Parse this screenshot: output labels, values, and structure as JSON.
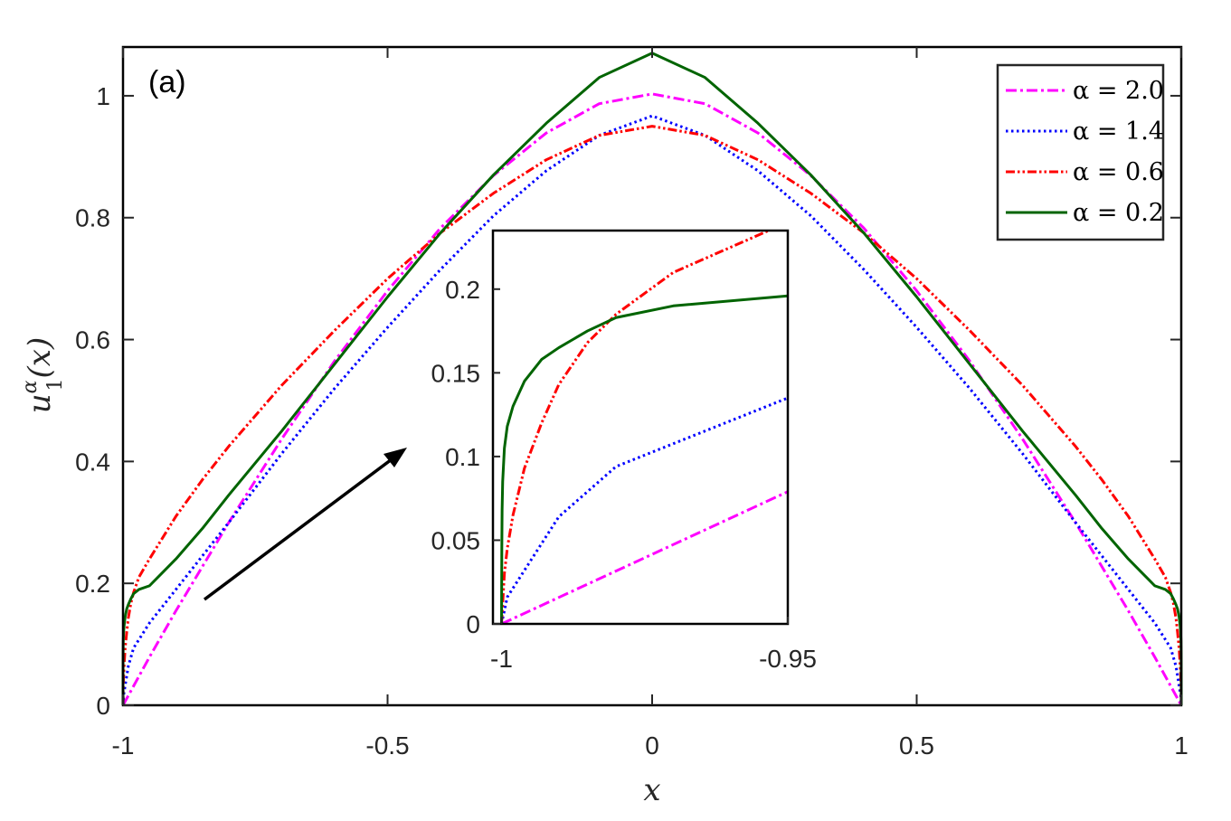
{
  "chart_data": {
    "type": "line",
    "panel_label": "(a)",
    "xlabel": "x",
    "ylabel": {
      "base": "u",
      "superscript": "α",
      "subscript": "1",
      "arg": "(x)"
    },
    "xlim": [
      -1,
      1
    ],
    "ylim": [
      0,
      1.08
    ],
    "xticks": [
      -1,
      -0.5,
      0,
      0.5,
      1
    ],
    "xtick_labels": [
      "-1",
      "-0.5",
      "0",
      "0.5",
      "1"
    ],
    "yticks": [
      0,
      0.2,
      0.4,
      0.6,
      0.8,
      1
    ],
    "ytick_labels": [
      "0",
      "0.2",
      "0.4",
      "0.6",
      "0.8",
      "1"
    ],
    "legend_position": "top-right",
    "series": [
      {
        "name": "α = 2.0",
        "legend_label": "α = 2.0",
        "alpha": 2.0,
        "color": "#ff00ff",
        "dash": "dash-dot",
        "x": [
          -1,
          -0.95,
          -0.9,
          -0.8,
          -0.7,
          -0.6,
          -0.5,
          -0.4,
          -0.3,
          -0.2,
          -0.1,
          0
        ],
        "y": [
          0,
          0.079,
          0.155,
          0.3,
          0.437,
          0.565,
          0.68,
          0.783,
          0.869,
          0.939,
          0.987,
          1.003
        ]
      },
      {
        "name": "α = 1.4",
        "legend_label": "α = 1.4",
        "alpha": 1.4,
        "color": "#0000ff",
        "dash": "dotted",
        "x": [
          -1,
          -0.999,
          -0.99,
          -0.98,
          -0.95,
          -0.9,
          -0.8,
          -0.7,
          -0.6,
          -0.5,
          -0.4,
          -0.3,
          -0.2,
          -0.1,
          0
        ],
        "y": [
          0,
          0.016,
          0.064,
          0.094,
          0.135,
          0.19,
          0.3,
          0.413,
          0.52,
          0.62,
          0.715,
          0.803,
          0.877,
          0.935,
          0.967
        ]
      },
      {
        "name": "α = 0.6",
        "legend_label": "α = 0.6",
        "alpha": 0.6,
        "color": "#ff0000",
        "dash": "dash-dot-dot",
        "x": [
          -1,
          -0.9995,
          -0.999,
          -0.998,
          -0.996,
          -0.993,
          -0.99,
          -0.985,
          -0.98,
          -0.97,
          -0.95,
          -0.9,
          -0.85,
          -0.8,
          -0.7,
          -0.6,
          -0.5,
          -0.4,
          -0.3,
          -0.2,
          -0.1,
          0
        ],
        "y": [
          0,
          0.03,
          0.045,
          0.065,
          0.093,
          0.12,
          0.143,
          0.168,
          0.185,
          0.21,
          0.24,
          0.31,
          0.37,
          0.425,
          0.525,
          0.615,
          0.7,
          0.775,
          0.84,
          0.895,
          0.935,
          0.95
        ]
      },
      {
        "name": "α = 0.2",
        "legend_label": "α = 0.2",
        "alpha": 0.2,
        "color": "#006400",
        "dash": "solid",
        "x": [
          -1,
          -0.99995,
          -0.9999,
          -0.9998,
          -0.9995,
          -0.999,
          -0.998,
          -0.996,
          -0.993,
          -0.99,
          -0.985,
          -0.98,
          -0.97,
          -0.95,
          -0.9,
          -0.85,
          -0.8,
          -0.7,
          -0.6,
          -0.5,
          -0.4,
          -0.3,
          -0.2,
          -0.1,
          0
        ],
        "y": [
          0,
          0.045,
          0.068,
          0.085,
          0.105,
          0.118,
          0.13,
          0.145,
          0.158,
          0.165,
          0.175,
          0.183,
          0.19,
          0.196,
          0.24,
          0.29,
          0.345,
          0.45,
          0.56,
          0.67,
          0.775,
          0.87,
          0.955,
          1.03,
          1.07
        ]
      }
    ],
    "inset": {
      "xlim": [
        -1.0015,
        -0.95
      ],
      "ylim": [
        0,
        0.235
      ],
      "xticks": [
        -1,
        -0.95
      ],
      "xtick_labels": [
        "-1",
        "-0.95"
      ],
      "yticks": [
        0,
        0.05,
        0.1,
        0.15,
        0.2
      ],
      "ytick_labels": [
        "0",
        "0.05",
        "0.1",
        "0.15",
        "0.2"
      ]
    }
  }
}
